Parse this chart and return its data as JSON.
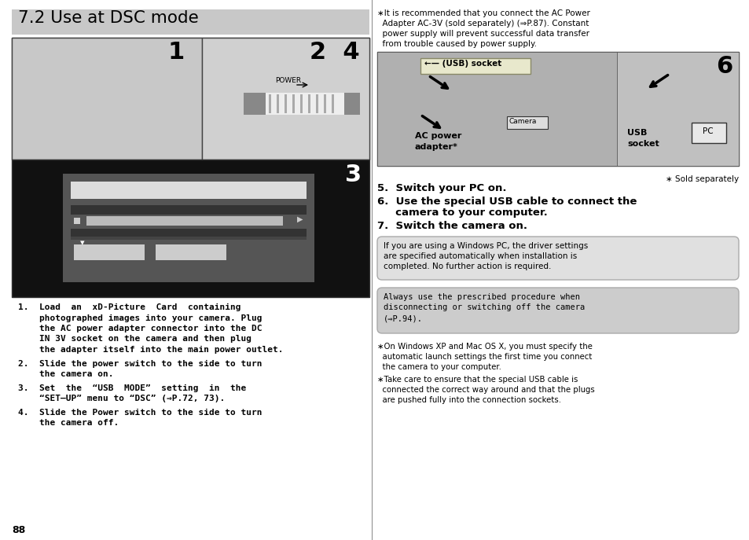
{
  "title": "7.2 Use at DSC mode",
  "title_bg": "#c8c8c8",
  "page_bg": "#ffffff",
  "page_num": "88",
  "right_note_line1": "∗It is recommended that you connect the AC Power",
  "right_note_line2": "  Adapter AC-3V (sold separately) (⇒P.87). Constant",
  "right_note_line3": "  power supply will prevent successful data transfer",
  "right_note_line4": "  from trouble caused by power supply.",
  "step5": "5.  Switch your PC on.",
  "step6a": "6.  Use the special USB cable to connect the",
  "step6b": "     camera to your computer.",
  "step7": "7.  Switch the camera on.",
  "info1_line1": "If you are using a Windows PC, the driver settings",
  "info1_line2": "are specified automatically when installation is",
  "info1_line3": "completed. No further action is required.",
  "info2_line1": "Always use the prescribed procedure when",
  "info2_line2": "disconnecting or switching off the camera",
  "info2_line3": "(⇒P.94).",
  "note_win1": "∗On Windows XP and Mac OS X, you must specify the",
  "note_win2": "  automatic launch settings the first time you connect",
  "note_win3": "  the camera to your computer.",
  "note_usb1": "∗Take care to ensure that the special USB cable is",
  "note_usb2": "  connected the correct way around and that the plugs",
  "note_usb3": "  are pushed fully into the connection sockets.",
  "sold_separately": "∗ Sold separately",
  "left1a": "1.  Load  an  xD-Picture  Card  containing",
  "left1b": "    photographed images into your camera. Plug",
  "left1c": "    the AC power adapter connector into the DC",
  "left1d": "    IN 3V socket on the camera and then plug",
  "left1e": "    the adapter itself into the main power outlet.",
  "left2a": "2.  Slide the power switch to the side to turn",
  "left2b": "    the camera on.",
  "left3a": "3.  Set  the  “USB  MODE”  setting  in  the",
  "left3b": "    “SET–UP” menu to “DSC” (⇒P.72, 73).",
  "left4a": "4.  Slide the Power switch to the side to turn",
  "left4b": "    the camera off.",
  "img_area_bg": "#c8c8c8",
  "img_dark_bg": "#111111",
  "img_menu_bg": "#666666",
  "img_menu_sel": "#444444",
  "img_menu_bar": "#dddddd",
  "img_sel_bar": "#bbbbbb",
  "usb_label_bg": "#e0e0c0",
  "camera_box_bg": "#dddddd",
  "box1_bg": "#e0e0e0",
  "box2_bg": "#cccccc",
  "box_border": "#aaaaaa",
  "divider": "#888888"
}
